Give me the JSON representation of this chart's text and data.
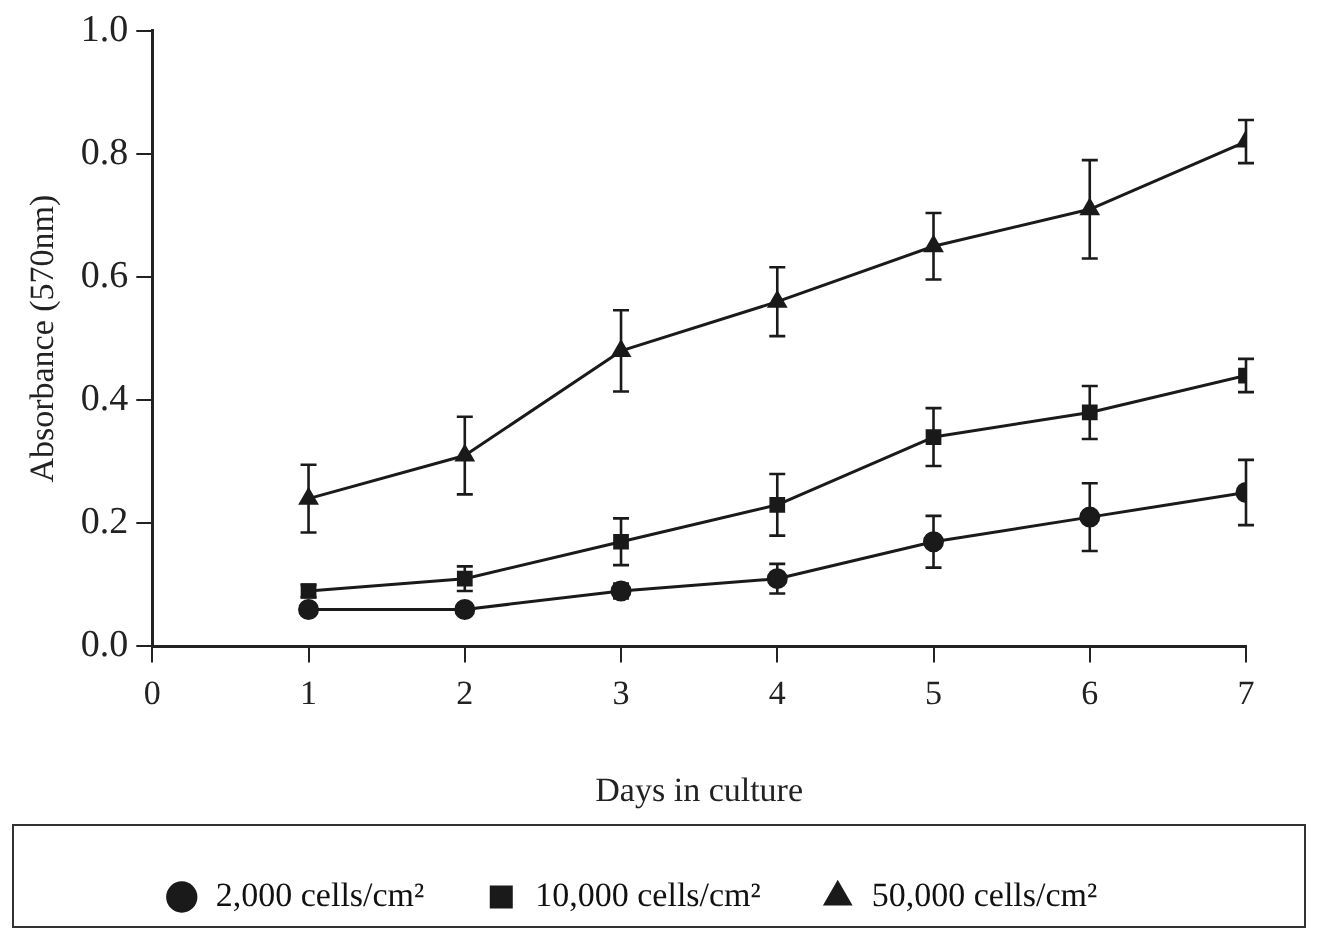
{
  "chart_data": {
    "type": "line",
    "xlabel": "Days in culture",
    "ylabel": "Absorbance (570nm)",
    "x": [
      1,
      2,
      3,
      4,
      5,
      6,
      7
    ],
    "series": [
      {
        "name": "2,000 cells/cm²",
        "color": "#1a1a1a",
        "marker": "circle",
        "values": [
          0.06,
          0.06,
          0.09,
          0.11,
          0.17,
          0.21,
          0.25
        ],
        "errors": [
          0.005,
          0.005,
          0.012,
          0.024,
          0.042,
          0.055,
          0.053
        ]
      },
      {
        "name": "10,000 cells/cm²",
        "color": "#1a1a1a",
        "marker": "square",
        "values": [
          0.09,
          0.11,
          0.17,
          0.23,
          0.34,
          0.38,
          0.44
        ],
        "errors": [
          0.01,
          0.02,
          0.038,
          0.05,
          0.047,
          0.043,
          0.027
        ]
      },
      {
        "name": "50,000 cells/cm²",
        "color": "#1a1a1a",
        "marker": "triangle",
        "values": [
          0.24,
          0.31,
          0.48,
          0.56,
          0.65,
          0.71,
          0.82
        ],
        "errors": [
          0.055,
          0.063,
          0.066,
          0.056,
          0.054,
          0.08,
          0.035
        ]
      }
    ],
    "xlim": [
      0,
      7
    ],
    "xticks": [
      0,
      1,
      2,
      3,
      4,
      5,
      6,
      7
    ],
    "ylim": [
      0,
      1
    ],
    "yticks": [
      {
        "value": 0,
        "label": "0.0"
      },
      {
        "value": 0.2,
        "label": "0.2"
      },
      {
        "value": 0.4,
        "label": "0.4"
      },
      {
        "value": 0.6,
        "label": "0.6"
      },
      {
        "value": 0.8,
        "label": "0.8"
      },
      {
        "value": 1,
        "label": "1.0"
      }
    ],
    "grid": false,
    "legend": "bottom",
    "line_style": "solid"
  }
}
